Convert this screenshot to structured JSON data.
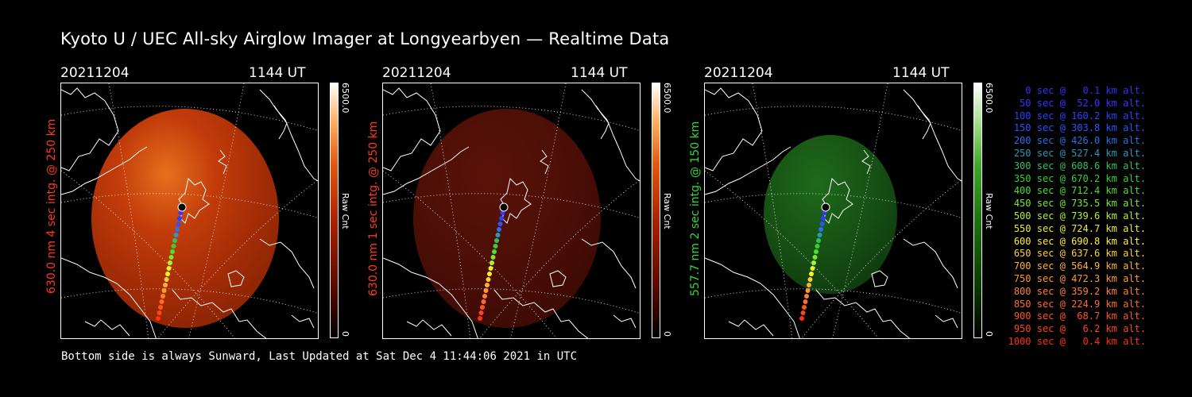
{
  "title": "Kyoto U / UEC All-sky Airglow Imager at Longyearbyen — Realtime Data",
  "footer": "Bottom side is always Sunward, Last Updated at Sat Dec  4 11:44:06 2021 in UTC",
  "panels": [
    {
      "date": "20211204",
      "time": "1144 UT",
      "ylabel": "630.0 nm 4 sec intg. @ 250 km",
      "label_color": "#ff3a1a",
      "cbar_max": "6500.0",
      "cbar_min": "0",
      "cbar_title": "Raw Cnt",
      "colormap": "red-hot",
      "brightness": 0.85
    },
    {
      "date": "20211204",
      "time": "1144 UT",
      "ylabel": "630.0 nm 1 sec intg. @ 250 km",
      "label_color": "#ff3a1a",
      "cbar_max": "6500.0",
      "cbar_min": "0",
      "cbar_title": "Raw Cnt",
      "colormap": "red-hot",
      "brightness": 0.25
    },
    {
      "date": "20211204",
      "time": "1144 UT",
      "ylabel": "557.7 nm 2 sec intg. @ 150 km",
      "label_color": "#34d83a",
      "cbar_max": "6500.0",
      "cbar_min": "0",
      "cbar_title": "Raw Cnt",
      "colormap": "green",
      "brightness": 0.3
    }
  ],
  "legend": [
    {
      "text": "  0 sec @   0.1 km alt.",
      "color": "#3030ff"
    },
    {
      "text": " 50 sec @  52.0 km alt.",
      "color": "#3535ff"
    },
    {
      "text": "100 sec @ 160.2 km alt.",
      "color": "#2a40ff"
    },
    {
      "text": "150 sec @ 303.8 km alt.",
      "color": "#2855ff"
    },
    {
      "text": "200 sec @ 426.0 km alt.",
      "color": "#2a70e8"
    },
    {
      "text": "250 sec @ 527.4 km alt.",
      "color": "#2a9ab8"
    },
    {
      "text": "300 sec @ 608.6 km alt.",
      "color": "#30c060"
    },
    {
      "text": "350 sec @ 670.2 km alt.",
      "color": "#38d030"
    },
    {
      "text": "400 sec @ 712.4 km alt.",
      "color": "#4ade30"
    },
    {
      "text": "450 sec @ 735.5 km alt.",
      "color": "#78e830"
    },
    {
      "text": "500 sec @ 739.6 km alt.",
      "color": "#b0f030"
    },
    {
      "text": "550 sec @ 724.7 km alt.",
      "color": "#e8f030"
    },
    {
      "text": "600 sec @ 690.8 km alt.",
      "color": "#fff030"
    },
    {
      "text": "650 sec @ 637.6 km alt.",
      "color": "#ffd030"
    },
    {
      "text": "700 sec @ 564.9 km alt.",
      "color": "#ffb030"
    },
    {
      "text": "750 sec @ 472.3 km alt.",
      "color": "#ff9830"
    },
    {
      "text": "800 sec @ 359.2 km alt.",
      "color": "#ff8030"
    },
    {
      "text": "850 sec @ 224.9 km alt.",
      "color": "#ff6a28"
    },
    {
      "text": "900 sec @  68.7 km alt.",
      "color": "#ff5520"
    },
    {
      "text": "950 sec @   6.2 km alt.",
      "color": "#ff4418"
    },
    {
      "text": "1000 sec @   0.4 km alt.",
      "color": "#ff3010"
    }
  ]
}
